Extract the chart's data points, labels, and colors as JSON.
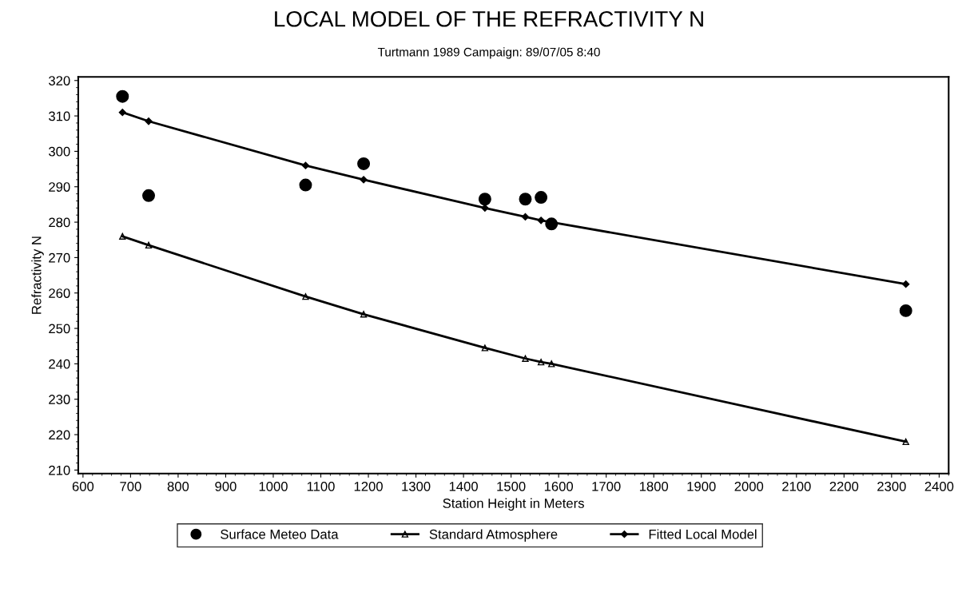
{
  "chart_data": {
    "type": "line",
    "title": "LOCAL MODEL OF THE REFRACTIVITY N",
    "subtitle": "Turtmann 1989 Campaign: 89/07/05 8:40",
    "xlabel": "Station Height in Meters",
    "ylabel": "Refractivity N",
    "x": [
      683,
      738,
      1068,
      1190,
      1445,
      1530,
      1563,
      1585,
      2330
    ],
    "series": [
      {
        "name": "Surface Meteo Data",
        "type": "scatter",
        "color": "#000000",
        "marker": "circle",
        "values": [
          315.5,
          287.5,
          290.5,
          296.5,
          286.5,
          286.5,
          287,
          279.5,
          255
        ]
      },
      {
        "name": "Standard Atmosphere",
        "color": "#000000",
        "marker": "triangle",
        "values": [
          276,
          273.5,
          259,
          254,
          244.5,
          241.5,
          240.5,
          240,
          218
        ]
      },
      {
        "name": "Fitted Local Model",
        "color": "#000000",
        "marker": "diamond",
        "values": [
          311,
          308.5,
          296,
          292,
          284,
          281.5,
          280.5,
          280,
          262.5
        ]
      }
    ],
    "xlim": [
      590,
      2420
    ],
    "xticks": [
      600,
      700,
      800,
      900,
      1000,
      1100,
      1200,
      1300,
      1400,
      1500,
      1600,
      1700,
      1800,
      1900,
      2000,
      2100,
      2200,
      2300,
      2400
    ],
    "ylim": [
      209,
      321
    ],
    "yticks": [
      210,
      220,
      230,
      240,
      250,
      260,
      270,
      280,
      290,
      300,
      310,
      320
    ],
    "grid": false,
    "legend": "bottom",
    "line_style": "solid"
  }
}
